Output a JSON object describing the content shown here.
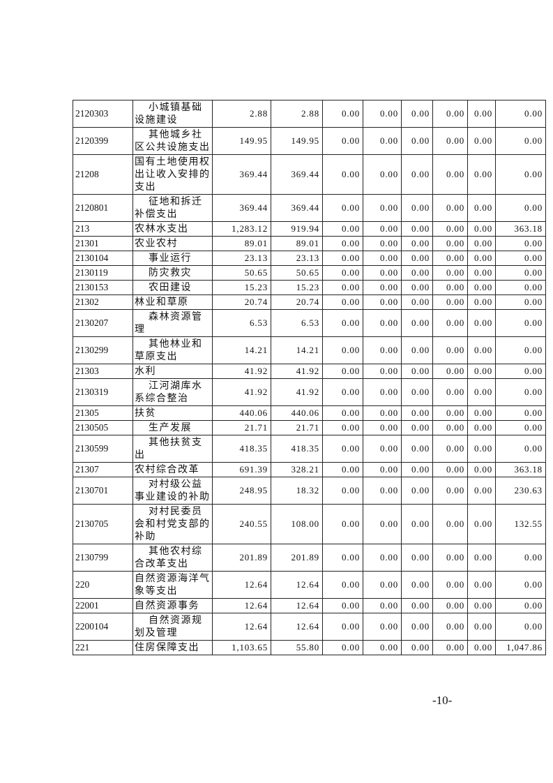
{
  "table": {
    "rows": [
      [
        "2120303",
        "小城镇基础设施建设",
        "2.88",
        "2.88",
        "0.00",
        "0.00",
        "0.00",
        "0.00",
        "0.00",
        "0.00"
      ],
      [
        "2120399",
        "其他城乡社区公共设施支出",
        "149.95",
        "149.95",
        "0.00",
        "0.00",
        "0.00",
        "0.00",
        "0.00",
        "0.00"
      ],
      [
        "21208",
        "国有土地使用权出让收入安排的支出",
        "369.44",
        "369.44",
        "0.00",
        "0.00",
        "0.00",
        "0.00",
        "0.00",
        "0.00"
      ],
      [
        "2120801",
        "征地和拆迁补偿支出",
        "369.44",
        "369.44",
        "0.00",
        "0.00",
        "0.00",
        "0.00",
        "0.00",
        "0.00"
      ],
      [
        "213",
        "农林水支出",
        "1,283.12",
        "919.94",
        "0.00",
        "0.00",
        "0.00",
        "0.00",
        "0.00",
        "363.18"
      ],
      [
        "21301",
        "农业农村",
        "89.01",
        "89.01",
        "0.00",
        "0.00",
        "0.00",
        "0.00",
        "0.00",
        "0.00"
      ],
      [
        "2130104",
        "事业运行",
        "23.13",
        "23.13",
        "0.00",
        "0.00",
        "0.00",
        "0.00",
        "0.00",
        "0.00"
      ],
      [
        "2130119",
        "防灾救灾",
        "50.65",
        "50.65",
        "0.00",
        "0.00",
        "0.00",
        "0.00",
        "0.00",
        "0.00"
      ],
      [
        "2130153",
        "农田建设",
        "15.23",
        "15.23",
        "0.00",
        "0.00",
        "0.00",
        "0.00",
        "0.00",
        "0.00"
      ],
      [
        "21302",
        "林业和草原",
        "20.74",
        "20.74",
        "0.00",
        "0.00",
        "0.00",
        "0.00",
        "0.00",
        "0.00"
      ],
      [
        "2130207",
        "森林资源管理",
        "6.53",
        "6.53",
        "0.00",
        "0.00",
        "0.00",
        "0.00",
        "0.00",
        "0.00"
      ],
      [
        "2130299",
        "其他林业和草原支出",
        "14.21",
        "14.21",
        "0.00",
        "0.00",
        "0.00",
        "0.00",
        "0.00",
        "0.00"
      ],
      [
        "21303",
        "水利",
        "41.92",
        "41.92",
        "0.00",
        "0.00",
        "0.00",
        "0.00",
        "0.00",
        "0.00"
      ],
      [
        "2130319",
        "江河湖库水系综合整治",
        "41.92",
        "41.92",
        "0.00",
        "0.00",
        "0.00",
        "0.00",
        "0.00",
        "0.00"
      ],
      [
        "21305",
        "扶贫",
        "440.06",
        "440.06",
        "0.00",
        "0.00",
        "0.00",
        "0.00",
        "0.00",
        "0.00"
      ],
      [
        "2130505",
        "生产发展",
        "21.71",
        "21.71",
        "0.00",
        "0.00",
        "0.00",
        "0.00",
        "0.00",
        "0.00"
      ],
      [
        "2130599",
        "其他扶贫支出",
        "418.35",
        "418.35",
        "0.00",
        "0.00",
        "0.00",
        "0.00",
        "0.00",
        "0.00"
      ],
      [
        "21307",
        "农村综合改革",
        "691.39",
        "328.21",
        "0.00",
        "0.00",
        "0.00",
        "0.00",
        "0.00",
        "363.18"
      ],
      [
        "2130701",
        "对村级公益事业建设的补助",
        "248.95",
        "18.32",
        "0.00",
        "0.00",
        "0.00",
        "0.00",
        "0.00",
        "230.63"
      ],
      [
        "2130705",
        "对村民委员会和村党支部的补助",
        "240.55",
        "108.00",
        "0.00",
        "0.00",
        "0.00",
        "0.00",
        "0.00",
        "132.55"
      ],
      [
        "2130799",
        "其他农村综合改革支出",
        "201.89",
        "201.89",
        "0.00",
        "0.00",
        "0.00",
        "0.00",
        "0.00",
        "0.00"
      ],
      [
        "220",
        "自然资源海洋气象等支出",
        "12.64",
        "12.64",
        "0.00",
        "0.00",
        "0.00",
        "0.00",
        "0.00",
        "0.00"
      ],
      [
        "22001",
        "自然资源事务",
        "12.64",
        "12.64",
        "0.00",
        "0.00",
        "0.00",
        "0.00",
        "0.00",
        "0.00"
      ],
      [
        "2200104",
        "自然资源规划及管理",
        "12.64",
        "12.64",
        "0.00",
        "0.00",
        "0.00",
        "0.00",
        "0.00",
        "0.00"
      ],
      [
        "221",
        "住房保障支出",
        "1,103.65",
        "55.80",
        "0.00",
        "0.00",
        "0.00",
        "0.00",
        "0.00",
        "1,047.86"
      ]
    ]
  },
  "footer": {
    "page_number": "-10-"
  }
}
